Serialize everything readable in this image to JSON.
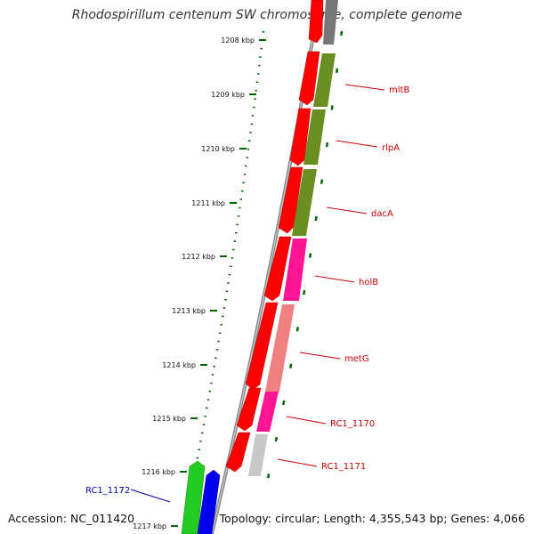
{
  "title": "Rhodospirillum centenum SW chromosome, complete genome",
  "accession": "Accession: NC_011420",
  "summary": "Topology: circular; Length: 4,355,543 bp; Genes: 4,066",
  "colors": {
    "backbone": "#8c8c8c",
    "forward_cds": "#ff0000",
    "tick": "#006400",
    "label_red": "#cc0000",
    "label_blue": "#0000aa"
  },
  "ticks": [
    {
      "label": "1208 kbp"
    },
    {
      "label": "1209 kbp"
    },
    {
      "label": "1210 kbp"
    },
    {
      "label": "1211 kbp"
    },
    {
      "label": "1212 kbp"
    },
    {
      "label": "1213 kbp"
    },
    {
      "label": "1214 kbp"
    },
    {
      "label": "1215 kbp"
    },
    {
      "label": "1216 kbp"
    },
    {
      "label": "1217 kbp"
    }
  ],
  "gene_labels": [
    {
      "name": "mltB"
    },
    {
      "name": "rlpA"
    },
    {
      "name": "dacA"
    },
    {
      "name": "holB"
    },
    {
      "name": "metG"
    },
    {
      "name": "RC1_1170"
    },
    {
      "name": "RC1_1171"
    },
    {
      "name": "RC1_1172"
    }
  ]
}
